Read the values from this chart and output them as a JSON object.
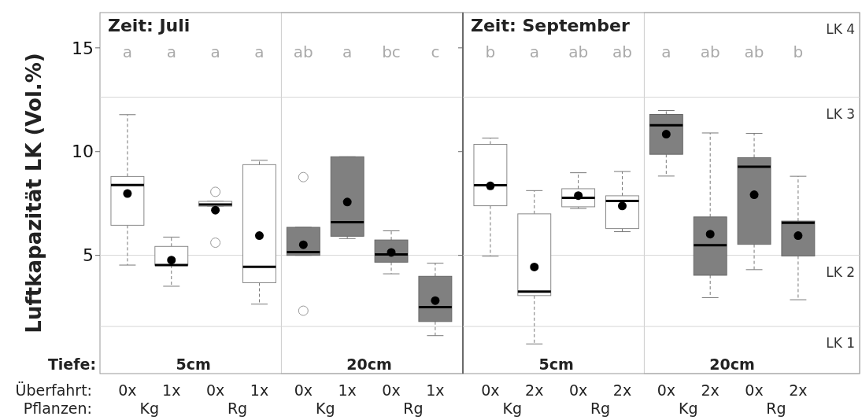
{
  "chart_data": [
    {
      "type": "box",
      "title": "Zeit: Juli",
      "ylabel": "Luftkapazität LK (Vol.%)",
      "categories": [
        "0x",
        "1x",
        "0x",
        "1x",
        "0x",
        "1x",
        "0x",
        "1x"
      ],
      "boxes": [
        {
          "low": 4.53,
          "q1": 6.45,
          "median": 8.39,
          "q3": 8.8,
          "high": 11.78,
          "mean": 7.98
        },
        {
          "low": 3.51,
          "q1": 4.53,
          "median": 4.53,
          "q3": 5.43,
          "high": 5.88,
          "mean": 4.77
        },
        {
          "low": 7.37,
          "q1": 7.37,
          "median": 7.45,
          "q3": 7.6,
          "high": 7.6,
          "mean": 7.18,
          "outliers": [
            8.06,
            5.61
          ]
        },
        {
          "low": 2.65,
          "q1": 3.68,
          "median": 4.45,
          "q3": 9.37,
          "high": 9.58,
          "mean": 5.95
        },
        {
          "low": 5.0,
          "q1": 5.0,
          "median": 5.16,
          "q3": 6.35,
          "high": 6.35,
          "mean": 5.51,
          "outliers": [
            8.77,
            2.33
          ]
        },
        {
          "low": 5.81,
          "q1": 5.92,
          "median": 6.6,
          "q3": 9.75,
          "high": 9.75,
          "mean": 7.57
        },
        {
          "low": 4.11,
          "q1": 4.67,
          "median": 5.04,
          "q3": 5.74,
          "high": 6.18,
          "mean": 5.14
        },
        {
          "low": 1.13,
          "q1": 1.81,
          "median": 2.5,
          "q3": 3.99,
          "high": 4.62,
          "mean": 2.82
        }
      ],
      "colors": [
        "#ffffff",
        "#ffffff",
        "#ffffff",
        "#ffffff",
        "#808080",
        "#808080",
        "#808080",
        "#808080"
      ],
      "ylim": [
        -0.7,
        16.7
      ],
      "yticks": [
        5,
        10,
        15
      ],
      "ref_lines": [
        {
          "axis": "y",
          "value": 1.57
        },
        {
          "axis": "y",
          "value": 5
        },
        {
          "axis": "y",
          "value": 12.62
        }
      ],
      "annotations": [
        "a",
        "a",
        "a",
        "a",
        "ab",
        "a",
        "bc",
        "c",
        "5cm",
        "20cm",
        "Kg",
        "Rg",
        "Kg",
        "Rg",
        "Tiefe:",
        "Überfahrt:",
        "Pflanzen:"
      ]
    },
    {
      "type": "box",
      "title": "Zeit: September",
      "categories": [
        "0x",
        "2x",
        "0x",
        "2x",
        "0x",
        "2x",
        "0x",
        "2x"
      ],
      "boxes": [
        {
          "low": 4.96,
          "q1": 7.39,
          "median": 8.38,
          "q3": 10.35,
          "high": 10.65,
          "mean": 8.35
        },
        {
          "low": 0.73,
          "q1": 3.06,
          "median": 3.25,
          "q3": 7.0,
          "high": 8.12,
          "mean": 4.44
        },
        {
          "low": 7.26,
          "q1": 7.34,
          "median": 7.77,
          "q3": 8.21,
          "high": 8.98,
          "mean": 7.88
        },
        {
          "low": 6.14,
          "q1": 6.29,
          "median": 7.62,
          "q3": 7.87,
          "high": 9.04,
          "mean": 7.38
        },
        {
          "low": 8.82,
          "q1": 9.87,
          "median": 11.27,
          "q3": 11.79,
          "high": 11.98,
          "mean": 10.84
        },
        {
          "low": 2.96,
          "q1": 4.04,
          "median": 5.49,
          "q3": 6.85,
          "high": 10.9,
          "mean": 6.02
        },
        {
          "low": 4.31,
          "q1": 5.53,
          "median": 9.27,
          "q3": 9.71,
          "high": 10.88,
          "mean": 7.92
        },
        {
          "low": 2.86,
          "q1": 4.97,
          "median": 6.57,
          "q3": 6.65,
          "high": 8.81,
          "mean": 5.95
        }
      ],
      "colors": [
        "#ffffff",
        "#ffffff",
        "#ffffff",
        "#ffffff",
        "#808080",
        "#808080",
        "#808080",
        "#808080"
      ],
      "ylim": [
        -0.7,
        16.7
      ],
      "yticks": [
        5,
        10,
        15
      ],
      "tick_labels": "x",
      "ref_lines": [
        {
          "axis": "y",
          "value": 1.57
        },
        {
          "axis": "y",
          "value": 5
        },
        {
          "axis": "y",
          "value": 12.62
        }
      ],
      "annotations": [
        "b",
        "a",
        "ab",
        "ab",
        "a",
        "ab",
        "ab",
        "b",
        "5cm",
        "20cm",
        "Kg",
        "Rg",
        "Kg",
        "Rg",
        "LK 4",
        "LK 3",
        "LK 2",
        "LK 1"
      ]
    }
  ]
}
